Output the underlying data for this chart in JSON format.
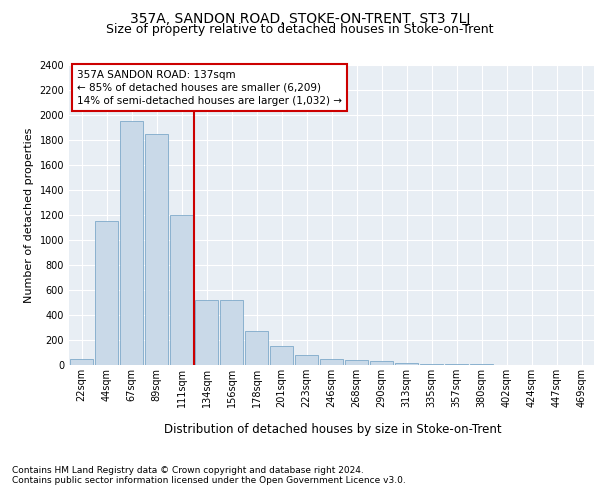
{
  "title": "357A, SANDON ROAD, STOKE-ON-TRENT, ST3 7LJ",
  "subtitle": "Size of property relative to detached houses in Stoke-on-Trent",
  "xlabel": "Distribution of detached houses by size in Stoke-on-Trent",
  "ylabel": "Number of detached properties",
  "categories": [
    "22sqm",
    "44sqm",
    "67sqm",
    "89sqm",
    "111sqm",
    "134sqm",
    "156sqm",
    "178sqm",
    "201sqm",
    "223sqm",
    "246sqm",
    "268sqm",
    "290sqm",
    "313sqm",
    "335sqm",
    "357sqm",
    "380sqm",
    "402sqm",
    "424sqm",
    "447sqm",
    "469sqm"
  ],
  "values": [
    50,
    1150,
    1950,
    1850,
    1200,
    520,
    520,
    270,
    150,
    80,
    50,
    40,
    35,
    15,
    12,
    8,
    5,
    3,
    2,
    2,
    1
  ],
  "bar_color": "#c9d9e8",
  "bar_edge_color": "#6b9dc2",
  "red_line_index": 4.5,
  "annotation_text": "357A SANDON ROAD: 137sqm\n← 85% of detached houses are smaller (6,209)\n14% of semi-detached houses are larger (1,032) →",
  "annotation_box_color": "#ffffff",
  "annotation_box_edge": "#cc0000",
  "red_line_color": "#cc0000",
  "ylim": [
    0,
    2400
  ],
  "yticks": [
    0,
    200,
    400,
    600,
    800,
    1000,
    1200,
    1400,
    1600,
    1800,
    2000,
    2200,
    2400
  ],
  "background_color": "#e8eef4",
  "footer1": "Contains HM Land Registry data © Crown copyright and database right 2024.",
  "footer2": "Contains public sector information licensed under the Open Government Licence v3.0.",
  "title_fontsize": 10,
  "subtitle_fontsize": 9,
  "xlabel_fontsize": 8.5,
  "ylabel_fontsize": 8,
  "tick_fontsize": 7,
  "footer_fontsize": 6.5,
  "annotation_fontsize": 7.5
}
